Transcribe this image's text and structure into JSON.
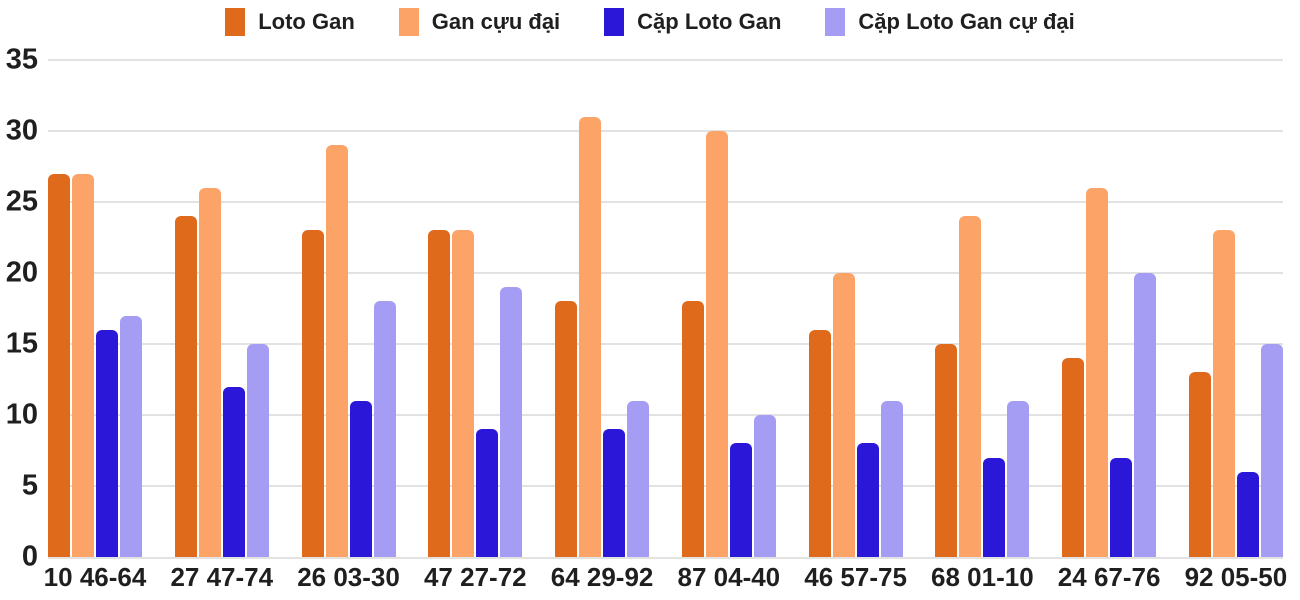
{
  "chart_data": {
    "type": "bar",
    "title": "",
    "xlabel": "",
    "ylabel": "",
    "legend_position": "top",
    "grid": true,
    "grid_color": "#e2e2e2",
    "text_color": "#1f1f1f",
    "background": "#ffffff",
    "y_axis": {
      "min": 0,
      "max": 35,
      "ticks": [
        0,
        5,
        10,
        15,
        20,
        25,
        30,
        35
      ]
    },
    "categories": [
      "10 46-64",
      "27 47-74",
      "26 03-30",
      "47 27-72",
      "64 29-92",
      "87 04-40",
      "46 57-75",
      "68 01-10",
      "24 67-76",
      "92 05-50"
    ],
    "series": [
      {
        "name": "Loto Gan",
        "color": "#e06a1b",
        "values": [
          27,
          24,
          23,
          23,
          18,
          18,
          16,
          15,
          14,
          13
        ]
      },
      {
        "name": "Gan cựu đại",
        "color": "#fca368",
        "values": [
          27,
          26,
          29,
          23,
          31,
          30,
          20,
          24,
          26,
          23
        ]
      },
      {
        "name": "Cặp Loto Gan",
        "color": "#2b17d8",
        "values": [
          16,
          12,
          11,
          9,
          9,
          8,
          8,
          7,
          7,
          6
        ]
      },
      {
        "name": "Cặp Loto Gan cự đại",
        "color": "#a49df3",
        "values": [
          17,
          15,
          18,
          19,
          11,
          10,
          11,
          11,
          20,
          15
        ]
      }
    ]
  }
}
